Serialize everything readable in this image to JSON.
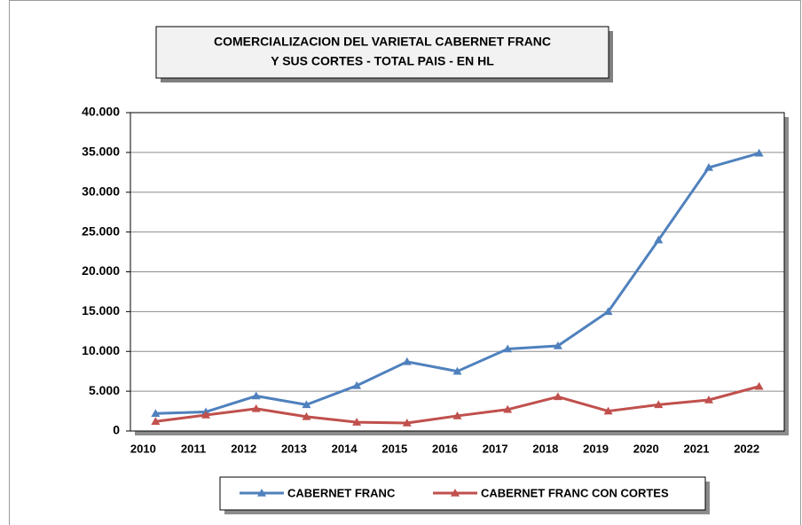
{
  "chart_data": {
    "type": "line",
    "title": [
      "COMERCIALIZACION DEL VARIETAL CABERNET FRANC",
      "Y SUS CORTES - TOTAL PAIS - EN HL"
    ],
    "categories": [
      "2010",
      "2011",
      "2012",
      "2013",
      "2014",
      "2015",
      "2016",
      "2017",
      "2018",
      "2019",
      "2020",
      "2021",
      "2022"
    ],
    "series": [
      {
        "name": "CABERNET FRANC",
        "color": "#4f81bd",
        "values": [
          2200,
          2400,
          4400,
          3300,
          5700,
          8700,
          7500,
          10300,
          10700,
          15000,
          24000,
          33100,
          34900
        ]
      },
      {
        "name": "CABERNET FRANC CON CORTES",
        "color": "#c0504d",
        "values": [
          1200,
          2000,
          2800,
          1800,
          1100,
          1000,
          1900,
          2700,
          4300,
          2500,
          3300,
          3900,
          5600
        ]
      }
    ],
    "ylim": [
      0,
      40000
    ],
    "yticks": [
      0,
      {
        "value": 5000,
        "label": "5.000"
      },
      {
        "value": 10000,
        "label": "10.000"
      },
      {
        "value": 15000,
        "label": "15.000"
      },
      {
        "value": 20000,
        "label": "20.000"
      },
      {
        "value": 25000,
        "label": "25.000"
      },
      {
        "value": 30000,
        "label": "30.000"
      },
      {
        "value": 35000,
        "label": "35.000"
      },
      {
        "value": 40000,
        "label": "40.000"
      }
    ],
    "grid": true,
    "legend": "bottom"
  }
}
